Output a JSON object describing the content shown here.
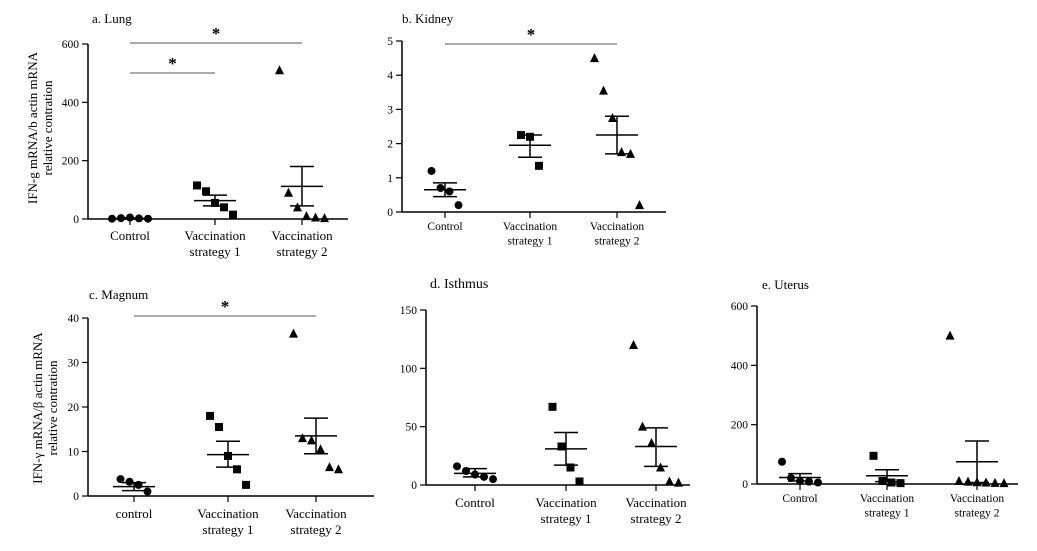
{
  "chart_data": [
    {
      "id": "lung",
      "type": "scatter",
      "title": "a. Lung",
      "ylabel": [
        "IFN-g mRNA/b actin mRNA",
        "relative contration"
      ],
      "ylim": [
        0,
        600
      ],
      "yticks": [
        0,
        200,
        400,
        600
      ],
      "categories": [
        [
          "Control"
        ],
        [
          "Vaccination",
          "strategy 1"
        ],
        [
          "Vaccination",
          "strategy 2"
        ]
      ],
      "groups": [
        {
          "marker": "circle",
          "points": [
            1,
            3,
            5,
            2,
            1
          ],
          "mean": 2,
          "err": [
            0,
            4
          ]
        },
        {
          "marker": "square",
          "points": [
            115,
            95,
            55,
            40,
            15
          ],
          "mean": 63,
          "err": [
            45,
            82
          ]
        },
        {
          "marker": "triangle",
          "points": [
            510,
            90,
            40,
            10,
            5,
            3
          ],
          "mean": 112,
          "err": [
            45,
            180
          ]
        }
      ],
      "significance": [
        {
          "from": 0,
          "to": 1,
          "label": "*"
        },
        {
          "from": 0,
          "to": 2,
          "label": "*"
        }
      ]
    },
    {
      "id": "kidney",
      "type": "scatter",
      "title": "b. Kidney",
      "ylabel": [],
      "ylim": [
        0,
        5
      ],
      "yticks": [
        0,
        1,
        2,
        3,
        4,
        5
      ],
      "categories": [
        [
          "Control"
        ],
        [
          "Vaccination",
          "strategy 1"
        ],
        [
          "Vaccination",
          "strategy 2"
        ]
      ],
      "groups": [
        {
          "marker": "circle",
          "points": [
            1.2,
            0.7,
            0.6,
            0.2
          ],
          "mean": 0.65,
          "err": [
            0.45,
            0.85
          ]
        },
        {
          "marker": "square",
          "points": [
            2.25,
            2.2,
            1.35
          ],
          "mean": 1.95,
          "err": [
            1.6,
            2.25
          ]
        },
        {
          "marker": "triangle",
          "points": [
            4.5,
            3.55,
            2.75,
            1.75,
            1.7,
            0.2
          ],
          "mean": 2.25,
          "err": [
            1.7,
            2.8
          ]
        }
      ],
      "significance": [
        {
          "from": 0,
          "to": 2,
          "label": "*"
        }
      ]
    },
    {
      "id": "magnum",
      "type": "scatter",
      "title": "c. Magnum",
      "ylabel": [
        "IFN-γ mRNA/β actin mRNA",
        "relative contration"
      ],
      "ylim": [
        0,
        40
      ],
      "yticks": [
        0,
        10,
        20,
        30,
        40
      ],
      "categories": [
        [
          "control"
        ],
        [
          "Vaccination",
          "strategy 1"
        ],
        [
          "Vaccination",
          "strategy 2"
        ]
      ],
      "groups": [
        {
          "marker": "circle",
          "points": [
            3.8,
            3.2,
            2.5,
            1.0
          ],
          "mean": 2.1,
          "err": [
            1.2,
            3.0
          ]
        },
        {
          "marker": "square",
          "points": [
            18,
            15.5,
            9,
            6,
            2.5
          ],
          "mean": 9.3,
          "err": [
            6.5,
            12.3
          ]
        },
        {
          "marker": "triangle",
          "points": [
            36.5,
            13,
            12.5,
            10.5,
            6.5,
            6
          ],
          "mean": 13.5,
          "err": [
            9.5,
            17.5
          ]
        }
      ],
      "significance": [
        {
          "from": 0,
          "to": 2,
          "label": "*"
        }
      ]
    },
    {
      "id": "isthmus",
      "type": "scatter",
      "title": "d. Isthmus",
      "ylabel": [],
      "ylim": [
        0,
        150
      ],
      "yticks": [
        0,
        50,
        100,
        150
      ],
      "categories": [
        [
          "Control"
        ],
        [
          "Vaccination",
          "strategy 1"
        ],
        [
          "Vaccination",
          "strategy 2"
        ]
      ],
      "groups": [
        {
          "marker": "circle",
          "points": [
            16,
            12,
            9,
            7,
            5
          ],
          "mean": 10,
          "err": [
            7,
            14
          ]
        },
        {
          "marker": "square",
          "points": [
            67,
            33,
            15,
            3
          ],
          "mean": 31,
          "err": [
            17,
            45
          ]
        },
        {
          "marker": "triangle",
          "points": [
            120,
            50,
            36,
            15,
            3,
            2
          ],
          "mean": 33,
          "err": [
            16,
            49
          ]
        }
      ],
      "significance": []
    },
    {
      "id": "uterus",
      "type": "scatter",
      "title": "e. Uterus",
      "ylabel": [],
      "ylim": [
        0,
        600
      ],
      "yticks": [
        0,
        200,
        400,
        600
      ],
      "categories": [
        [
          "Control"
        ],
        [
          "Vaccination",
          "strategy 1"
        ],
        [
          "Vaccination",
          "strategy 2"
        ]
      ],
      "groups": [
        {
          "marker": "circle",
          "points": [
            75,
            20,
            10,
            8,
            5
          ],
          "mean": 22,
          "err": [
            10,
            35
          ]
        },
        {
          "marker": "square",
          "points": [
            95,
            10,
            5,
            3
          ],
          "mean": 28,
          "err": [
            8,
            48
          ]
        },
        {
          "marker": "triangle",
          "points": [
            500,
            10,
            8,
            6,
            5,
            4,
            3
          ],
          "mean": 75,
          "err": [
            5,
            145
          ]
        }
      ],
      "significance": []
    }
  ]
}
